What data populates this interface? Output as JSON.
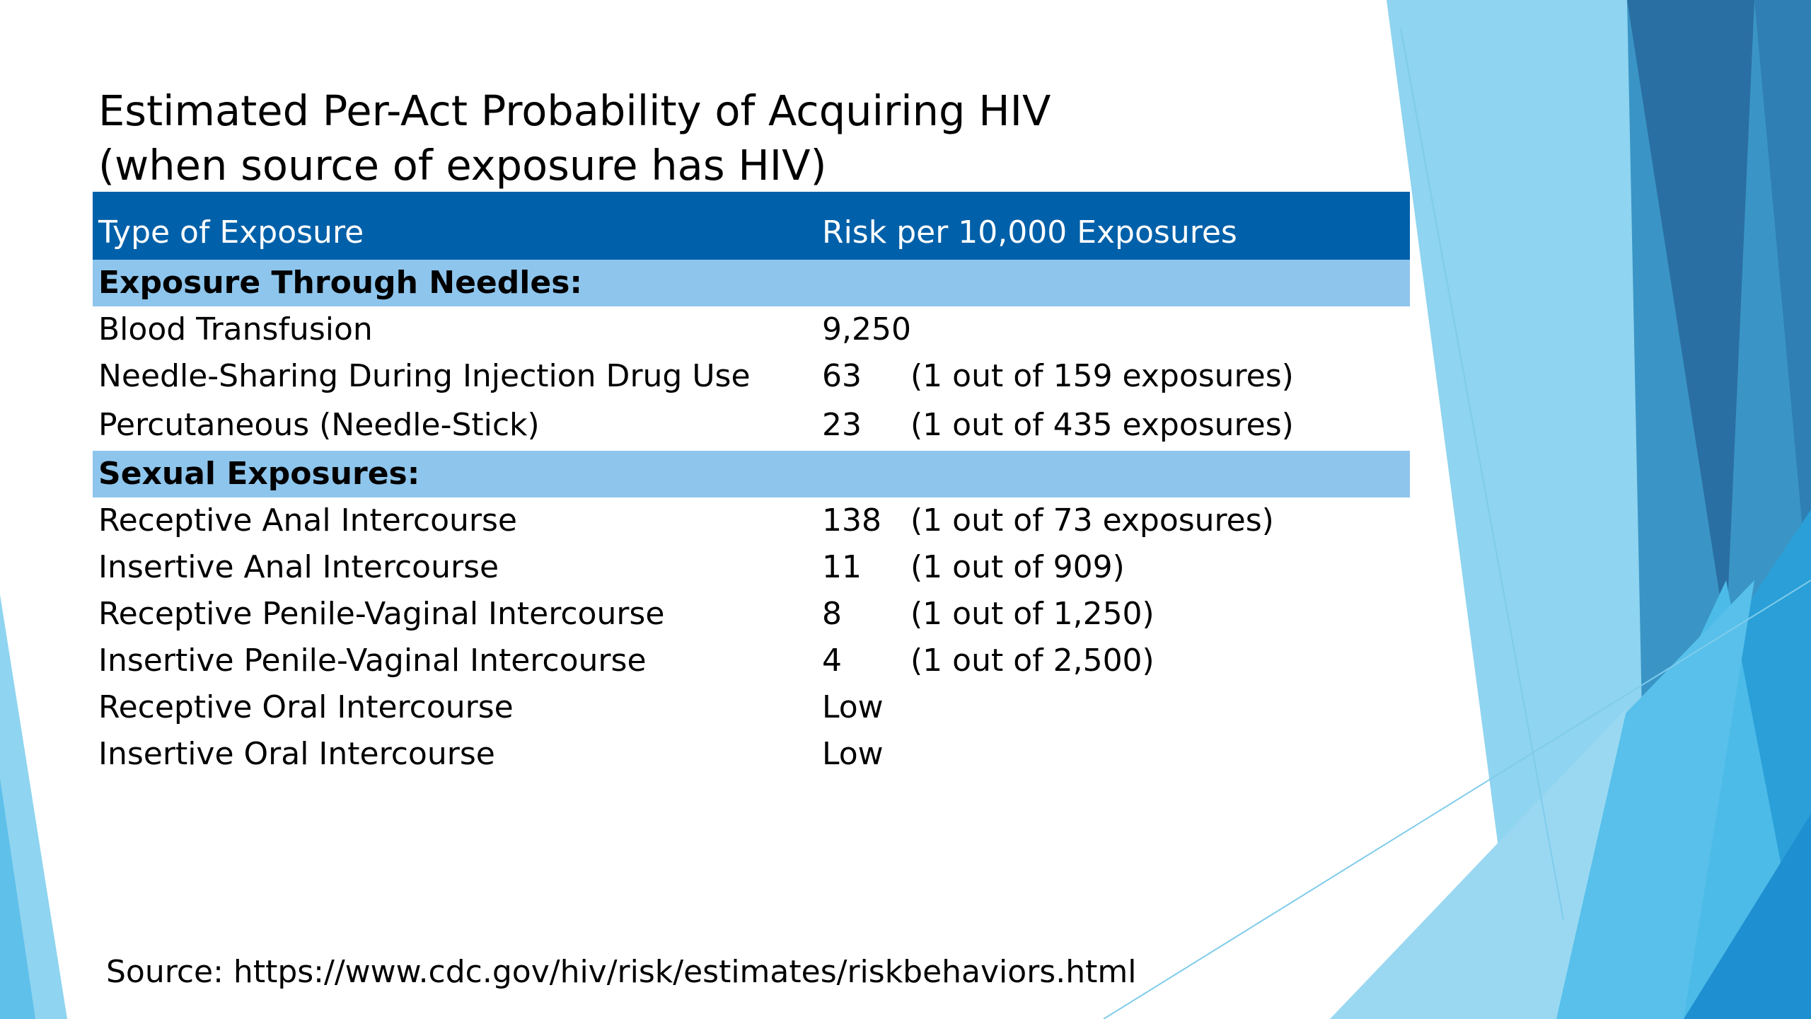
{
  "title": {
    "line1": "Estimated Per-Act Probability of Acquiring HIV",
    "line2": "(when source of exposure has HIV)"
  },
  "table": {
    "headers": {
      "type": "Type of Exposure",
      "risk": "Risk per 10,000 Exposures"
    },
    "sections": [
      {
        "label": "Exposure Through Needles:",
        "rows": [
          {
            "type": "Blood Transfusion",
            "risk": "9,250",
            "note": ""
          },
          {
            "type": "Needle-Sharing During Injection Drug Use",
            "risk": "63",
            "note": "(1 out of 159 exposures)"
          },
          {
            "type": "Percutaneous (Needle-Stick)",
            "risk": "23",
            "note": "(1 out of 435 exposures)"
          }
        ]
      },
      {
        "label": "Sexual Exposures:",
        "rows": [
          {
            "type": "Receptive Anal Intercourse",
            "risk": "138",
            "note": "(1 out of 73 exposures)"
          },
          {
            "type": "Insertive Anal Intercourse",
            "risk": "11",
            "note": "(1 out of 909)"
          },
          {
            "type": "Receptive Penile-Vaginal Intercourse",
            "risk": "8",
            "note": "(1 out of 1,250)"
          },
          {
            "type": "Insertive Penile-Vaginal Intercourse",
            "risk": "4",
            "note": "(1 out of 2,500)"
          },
          {
            "type": "Receptive Oral Intercourse",
            "risk": "Low",
            "note": ""
          },
          {
            "type": "Insertive Oral Intercourse",
            "risk": "Low",
            "note": ""
          }
        ]
      }
    ]
  },
  "source": "Source: https://www.cdc.gov/hiv/risk/estimates/riskbehaviors.html",
  "colors": {
    "header_bg": "#0060a9",
    "section_bg": "#8ec5ec"
  }
}
